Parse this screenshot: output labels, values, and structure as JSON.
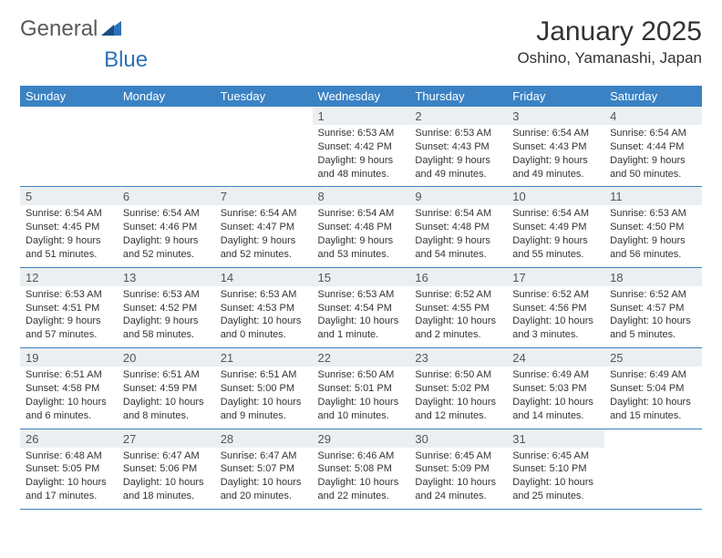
{
  "brand": {
    "name_part1": "General",
    "name_part2": "Blue",
    "color_gray": "#5a5a5a",
    "color_blue": "#2c72b8"
  },
  "title": "January 2025",
  "location": "Oshino, Yamanashi, Japan",
  "colors": {
    "header_bg": "#3a82c4",
    "header_text": "#ffffff",
    "daynum_bg": "#eceff1",
    "cell_border": "#3a82c4",
    "body_text": "#333333"
  },
  "weekdays": [
    "Sunday",
    "Monday",
    "Tuesday",
    "Wednesday",
    "Thursday",
    "Friday",
    "Saturday"
  ],
  "weeks": [
    [
      null,
      null,
      null,
      {
        "n": "1",
        "sunrise": "6:53 AM",
        "sunset": "4:42 PM",
        "daylight": "9 hours and 48 minutes."
      },
      {
        "n": "2",
        "sunrise": "6:53 AM",
        "sunset": "4:43 PM",
        "daylight": "9 hours and 49 minutes."
      },
      {
        "n": "3",
        "sunrise": "6:54 AM",
        "sunset": "4:43 PM",
        "daylight": "9 hours and 49 minutes."
      },
      {
        "n": "4",
        "sunrise": "6:54 AM",
        "sunset": "4:44 PM",
        "daylight": "9 hours and 50 minutes."
      }
    ],
    [
      {
        "n": "5",
        "sunrise": "6:54 AM",
        "sunset": "4:45 PM",
        "daylight": "9 hours and 51 minutes."
      },
      {
        "n": "6",
        "sunrise": "6:54 AM",
        "sunset": "4:46 PM",
        "daylight": "9 hours and 52 minutes."
      },
      {
        "n": "7",
        "sunrise": "6:54 AM",
        "sunset": "4:47 PM",
        "daylight": "9 hours and 52 minutes."
      },
      {
        "n": "8",
        "sunrise": "6:54 AM",
        "sunset": "4:48 PM",
        "daylight": "9 hours and 53 minutes."
      },
      {
        "n": "9",
        "sunrise": "6:54 AM",
        "sunset": "4:48 PM",
        "daylight": "9 hours and 54 minutes."
      },
      {
        "n": "10",
        "sunrise": "6:54 AM",
        "sunset": "4:49 PM",
        "daylight": "9 hours and 55 minutes."
      },
      {
        "n": "11",
        "sunrise": "6:53 AM",
        "sunset": "4:50 PM",
        "daylight": "9 hours and 56 minutes."
      }
    ],
    [
      {
        "n": "12",
        "sunrise": "6:53 AM",
        "sunset": "4:51 PM",
        "daylight": "9 hours and 57 minutes."
      },
      {
        "n": "13",
        "sunrise": "6:53 AM",
        "sunset": "4:52 PM",
        "daylight": "9 hours and 58 minutes."
      },
      {
        "n": "14",
        "sunrise": "6:53 AM",
        "sunset": "4:53 PM",
        "daylight": "10 hours and 0 minutes."
      },
      {
        "n": "15",
        "sunrise": "6:53 AM",
        "sunset": "4:54 PM",
        "daylight": "10 hours and 1 minute."
      },
      {
        "n": "16",
        "sunrise": "6:52 AM",
        "sunset": "4:55 PM",
        "daylight": "10 hours and 2 minutes."
      },
      {
        "n": "17",
        "sunrise": "6:52 AM",
        "sunset": "4:56 PM",
        "daylight": "10 hours and 3 minutes."
      },
      {
        "n": "18",
        "sunrise": "6:52 AM",
        "sunset": "4:57 PM",
        "daylight": "10 hours and 5 minutes."
      }
    ],
    [
      {
        "n": "19",
        "sunrise": "6:51 AM",
        "sunset": "4:58 PM",
        "daylight": "10 hours and 6 minutes."
      },
      {
        "n": "20",
        "sunrise": "6:51 AM",
        "sunset": "4:59 PM",
        "daylight": "10 hours and 8 minutes."
      },
      {
        "n": "21",
        "sunrise": "6:51 AM",
        "sunset": "5:00 PM",
        "daylight": "10 hours and 9 minutes."
      },
      {
        "n": "22",
        "sunrise": "6:50 AM",
        "sunset": "5:01 PM",
        "daylight": "10 hours and 10 minutes."
      },
      {
        "n": "23",
        "sunrise": "6:50 AM",
        "sunset": "5:02 PM",
        "daylight": "10 hours and 12 minutes."
      },
      {
        "n": "24",
        "sunrise": "6:49 AM",
        "sunset": "5:03 PM",
        "daylight": "10 hours and 14 minutes."
      },
      {
        "n": "25",
        "sunrise": "6:49 AM",
        "sunset": "5:04 PM",
        "daylight": "10 hours and 15 minutes."
      }
    ],
    [
      {
        "n": "26",
        "sunrise": "6:48 AM",
        "sunset": "5:05 PM",
        "daylight": "10 hours and 17 minutes."
      },
      {
        "n": "27",
        "sunrise": "6:47 AM",
        "sunset": "5:06 PM",
        "daylight": "10 hours and 18 minutes."
      },
      {
        "n": "28",
        "sunrise": "6:47 AM",
        "sunset": "5:07 PM",
        "daylight": "10 hours and 20 minutes."
      },
      {
        "n": "29",
        "sunrise": "6:46 AM",
        "sunset": "5:08 PM",
        "daylight": "10 hours and 22 minutes."
      },
      {
        "n": "30",
        "sunrise": "6:45 AM",
        "sunset": "5:09 PM",
        "daylight": "10 hours and 24 minutes."
      },
      {
        "n": "31",
        "sunrise": "6:45 AM",
        "sunset": "5:10 PM",
        "daylight": "10 hours and 25 minutes."
      },
      null
    ]
  ],
  "labels": {
    "sunrise": "Sunrise:",
    "sunset": "Sunset:",
    "daylight": "Daylight:"
  }
}
